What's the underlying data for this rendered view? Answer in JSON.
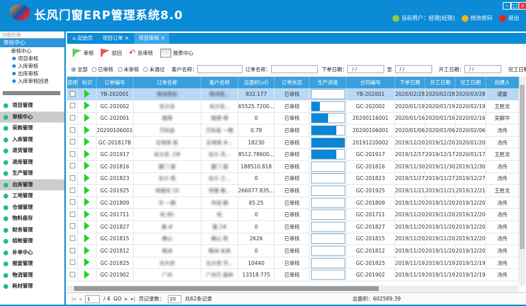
{
  "app": {
    "title": "长风门窗ERP管理系统8.0",
    "current_user": "当前用户：经理[经理]",
    "change_password": "修改密码",
    "logout": "退出"
  },
  "sidebar": {
    "search_placeholder": "功能列表",
    "section": "审核中心",
    "tree": {
      "root": "审核中心",
      "items": [
        "项目审核",
        "入库审核",
        "出库审核",
        "入库审核回退"
      ]
    },
    "nav": [
      "项目管理",
      "审核中心",
      "采购管理",
      "入库管理",
      "退货管理",
      "退库管理",
      "生产管理",
      "出库管理",
      "工地管理",
      "仓储管理",
      "物料盘存",
      "财务管理",
      "结帐管理",
      "补单中心",
      "报废管理",
      "物流管理",
      "耗材管理"
    ],
    "selected": [
      "审核中心",
      "出库管理"
    ]
  },
  "tabs": [
    {
      "label": "起始页",
      "closable": false
    },
    {
      "label": "项目订单",
      "closable": true
    },
    {
      "label": "项目审核",
      "closable": true,
      "active": true
    }
  ],
  "toolbar": {
    "approve": "审核",
    "reject": "驳回",
    "unapprove": "反审核",
    "report": "报表中心"
  },
  "filter": {
    "radios": [
      "全部",
      "已审核",
      "未审核",
      "未通过"
    ],
    "selected": "全部",
    "customer_label": "客户名称：",
    "order_label": "订单名称：",
    "order_date_label": "下单日期：",
    "to_label": "至",
    "start_date_label": "开工日期：",
    "finish_date_label": "完工日期：",
    "date_placeholder": "/ /"
  },
  "table": {
    "columns": [
      "选择",
      "标识",
      "订单编号",
      "订单名称",
      "客户名称",
      "总面积(㎡)",
      "订单状态",
      "生产进度",
      "合同编号",
      "下单日期",
      "开工日期",
      "完工日期",
      "创建人"
    ],
    "rows": [
      [
        "YB-202001",
        "株洲宽松",
        "株洲宽...",
        "832.177",
        "已审核",
        0,
        "YB-202001",
        "2020/02/28",
        "2020/02/28",
        "2020/03/28",
        "谌雷"
      ],
      [
        "GC-202002",
        "长沙龙",
        "长沙龙...",
        "65525.7200...",
        "已审核",
        25,
        "GC-202002",
        "2020/01/19",
        "2020/01/19",
        "2020/02/19",
        "王胜龙"
      ],
      [
        "GC-202001",
        "随港",
        "随港 墙",
        "0",
        "已审核",
        50,
        "20200116001",
        "2020/01/16",
        "2020/01/16",
        "2020/02/16",
        "吴解华"
      ],
      [
        "20200106001",
        "万科金",
        "万科金 一期",
        "0.78",
        "已审核",
        75,
        "20200106001",
        "2020/01/06",
        "2020/01/06",
        "2020/02/06",
        "汤伟"
      ],
      [
        "GC-201817B",
        "实地常 栋",
        "实地常 #...",
        "18230",
        "已审核",
        100,
        "20191220002",
        "2019/12/20",
        "2019/12/20",
        "2020/01/20",
        "汤伟"
      ],
      [
        "GC-201917",
        "长沙龙 -2#",
        "长沙 天...",
        "8512.78600...",
        "已审核",
        75,
        "GC-201917",
        "2019/12/17",
        "2019/12/17",
        "2020/01/17",
        "王胜龙"
      ],
      [
        "GC-201816",
        "厦门 望",
        "厦门 望",
        "188510.818",
        "已审核",
        0,
        "GC-201816",
        "2019/11/30",
        "2019/11/30",
        "2019/12/30",
        "汤伟"
      ],
      [
        "GC-201823",
        "长沙 苑",
        "长沙 之...",
        "0",
        "已审核",
        0,
        "GC-201823",
        "2019/11/27",
        "2019/11/27",
        "2019/12/27",
        "汤伟"
      ],
      [
        "GC-201925",
        "常德龙 10",
        "常德 泰...",
        "266077.835...",
        "已审核",
        0,
        "GC-201925",
        "2019/11/21",
        "2019/11/21",
        "2019/12/21",
        "王胜龙"
      ],
      [
        "GC-201809",
        "华 一期",
        "华润 期",
        "85.25",
        "已审核",
        0,
        "GC-201809",
        "2019/11/20",
        "2019/11/20",
        "2019/12/20",
        "汤伟"
      ],
      [
        "GC-201711",
        "杭 府)",
        "杭",
        "0",
        "已审核",
        0,
        "GC-201711",
        "2019/11/20",
        "2019/11/20",
        "2019/12/20",
        "汤伟"
      ],
      [
        "GC-201827",
        "雅 #",
        "雅 2#",
        "0",
        "已审核",
        0,
        "GC-201827",
        "2019/11/20",
        "2019/11/20",
        "2019/12/20",
        "汤伟"
      ],
      [
        "GC-201815",
        "佛山",
        "佛山 苑",
        "2626",
        "已审核",
        0,
        "GC-201815",
        "2019/11/20",
        "2019/11/20",
        "2019/12/20",
        "汤伟"
      ],
      [
        "GC-201812",
        "株洲",
        "株洲 未来",
        "0",
        "已审核",
        0,
        "GC-201812",
        "2019/11/20",
        "2019/11/20",
        "2019/12/20",
        "汤伟"
      ],
      [
        "GC-201825",
        "北大资",
        "北大资 天...",
        "10440",
        "已审核",
        0,
        "GC-201825",
        "2019/11/19",
        "2019/11/19",
        "2019/12/19",
        "汤伟"
      ],
      [
        "GC-201902",
        "广州",
        "广州万 森林",
        "13318.775",
        "已审核",
        0,
        "GC-201902",
        "2019/11/19",
        "2019/11/19",
        "2019/12/19",
        "汤伟"
      ]
    ]
  },
  "pager": {
    "page": "1",
    "total_pages": "/ 4",
    "go": "GO",
    "page_size_label": "页记录数：",
    "page_size": "20",
    "total": "共62条记录",
    "area_total": "总面积：602589.39"
  },
  "colors": {
    "header": "#0b8bd6",
    "grid_header": "#3aa0dc",
    "progress": "#0a86d6",
    "flag_icon": "#22d322"
  }
}
